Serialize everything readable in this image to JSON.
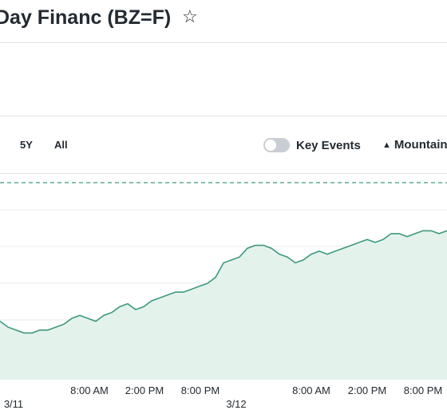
{
  "header": {
    "title": "Day Financ (BZ=F)",
    "favorite_icon": "star-icon"
  },
  "toolbar": {
    "ranges": [
      "5Y",
      "All"
    ],
    "key_events_label": "Key Events",
    "key_events_on": false,
    "chart_type_label": "Mountain"
  },
  "colors": {
    "line": "#3d9a7e",
    "fill": "#e4f2ec",
    "prev_close": "#3d9a7e",
    "grid": "#e7eaee",
    "volume": "#d5d9de"
  },
  "chart_data": {
    "type": "area",
    "x_tick_labels": [
      "8:00 AM",
      "2:00 PM",
      "8:00 PM",
      "8:00 AM",
      "2:00 PM",
      "8:00 PM"
    ],
    "date_labels": [
      "3/11",
      "3/12"
    ],
    "values": [
      50,
      48,
      47,
      46,
      46,
      47,
      47,
      48,
      49,
      51,
      52,
      51,
      50,
      52,
      53,
      55,
      56,
      54,
      55,
      57,
      58,
      59,
      60,
      60,
      61,
      62,
      63,
      65,
      70,
      71,
      72,
      75,
      76,
      76,
      75,
      73,
      72,
      70,
      71,
      73,
      74,
      73,
      74,
      75,
      76,
      77,
      78,
      77,
      78,
      80,
      80,
      79,
      80,
      81,
      81,
      80,
      81
    ],
    "prev_close_line": "dashed",
    "grid": true
  }
}
